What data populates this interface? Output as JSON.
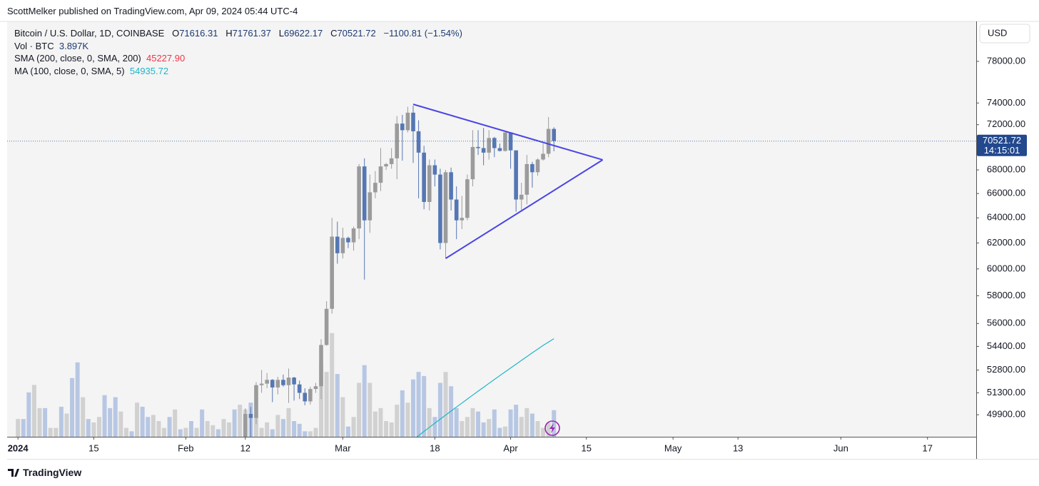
{
  "publisher": "ScottMelker published on TradingView.com, Apr 09, 2024 05:44 UTC-4",
  "footer": "TradingView",
  "chart_data": {
    "type": "candlestick",
    "symbol": "Bitcoin / U.S. Dollar, 1D, COINBASE",
    "open_label": "O",
    "high_label": "H",
    "low_label": "L",
    "close_label": "C",
    "change": {
      "value": -1100.81,
      "label": "−1100.81"
    },
    "change_percent": {
      "value": -1.54,
      "label": "(−1.54%)"
    },
    "currency": "USD",
    "countdown": "14:15:01",
    "log_scale": true,
    "up_color": "#9b9b9b",
    "down_color": "#5577b3",
    "x": [
      "2024-02-12",
      "2024-02-13",
      "2024-02-14",
      "2024-02-15",
      "2024-02-16",
      "2024-02-17",
      "2024-02-18",
      "2024-02-19",
      "2024-02-20",
      "2024-02-21",
      "2024-02-22",
      "2024-02-23",
      "2024-02-24",
      "2024-02-25",
      "2024-02-26",
      "2024-02-27",
      "2024-02-28",
      "2024-02-29",
      "2024-03-01",
      "2024-03-02",
      "2024-03-03",
      "2024-03-04",
      "2024-03-05",
      "2024-03-06",
      "2024-03-07",
      "2024-03-08",
      "2024-03-09",
      "2024-03-10",
      "2024-03-11",
      "2024-03-12",
      "2024-03-13",
      "2024-03-14",
      "2024-03-15",
      "2024-03-16",
      "2024-03-17",
      "2024-03-18",
      "2024-03-19",
      "2024-03-20",
      "2024-03-21",
      "2024-03-22",
      "2024-03-23",
      "2024-03-24",
      "2024-03-25",
      "2024-03-26",
      "2024-03-27",
      "2024-03-28",
      "2024-03-29",
      "2024-03-30",
      "2024-03-31",
      "2024-04-01",
      "2024-04-02",
      "2024-04-03",
      "2024-04-04",
      "2024-04-05",
      "2024-04-06",
      "2024-04-07",
      "2024-04-08",
      "2024-04-09"
    ],
    "open": [
      48300,
      49950,
      49700,
      51800,
      51900,
      52150,
      51650,
      52150,
      51800,
      52300,
      51850,
      51300,
      50750,
      51550,
      51730,
      54500,
      57050,
      62500,
      61200,
      62400,
      62050,
      63150,
      68300,
      63800,
      66100,
      66900,
      68300,
      68500,
      69000,
      72100,
      71500,
      73100,
      71400,
      69500,
      65300,
      68400,
      67600,
      62000,
      67800,
      65500,
      63800,
      64000,
      67200,
      70000,
      69900,
      69500,
      70800,
      69900,
      69650,
      71300,
      69700,
      65500,
      65900,
      68500,
      67800,
      68900,
      69400,
      71616.31
    ],
    "high": [
      50300,
      50400,
      52000,
      52800,
      52600,
      52200,
      52350,
      52500,
      52900,
      52350,
      52100,
      51600,
      51700,
      51950,
      54900,
      57600,
      64000,
      63700,
      63200,
      62500,
      63300,
      68500,
      69000,
      67600,
      67900,
      69900,
      68600,
      69900,
      72800,
      72900,
      73650,
      73750,
      72400,
      70100,
      68900,
      68900,
      68100,
      68000,
      68200,
      66600,
      65800,
      67600,
      71500,
      71500,
      71700,
      71500,
      70900,
      70300,
      71300,
      71300,
      69700,
      66900,
      69300,
      68700,
      69000,
      70300,
      72700,
      71761.37
    ],
    "low": [
      47700,
      48300,
      49300,
      51300,
      51600,
      50700,
      51200,
      51700,
      50650,
      50800,
      50900,
      50500,
      50550,
      51300,
      50900,
      54450,
      56700,
      60400,
      60800,
      61600,
      61400,
      62300,
      59200,
      62800,
      65600,
      66200,
      68000,
      68100,
      67200,
      68800,
      71300,
      68600,
      65600,
      64700,
      64600,
      66600,
      61500,
      60800,
      64600,
      62300,
      63100,
      63800,
      66600,
      69300,
      68400,
      68900,
      69100,
      69600,
      69600,
      68100,
      64500,
      64500,
      65100,
      66500,
      67500,
      68800,
      69100,
      69622.17
    ],
    "close": [
      49950,
      49700,
      51800,
      51900,
      52150,
      51650,
      52150,
      51800,
      52300,
      51850,
      51300,
      50750,
      51550,
      51730,
      54500,
      57050,
      62500,
      61200,
      62400,
      62050,
      63150,
      68300,
      63800,
      66100,
      66900,
      68300,
      68500,
      69000,
      72100,
      71500,
      73100,
      71400,
      69500,
      65300,
      68400,
      67600,
      62000,
      67800,
      65500,
      63800,
      64000,
      67200,
      70000,
      69900,
      69500,
      70800,
      69900,
      69650,
      71300,
      69700,
      65500,
      65900,
      68500,
      67800,
      68900,
      69400,
      71616.31,
      70521.72
    ],
    "ylim": [
      48530,
      82040
    ],
    "yticks": [
      {
        "value": 49900,
        "label": "49900.00"
      },
      {
        "value": 51300,
        "label": "51300.00"
      },
      {
        "value": 52800,
        "label": "52800.00"
      },
      {
        "value": 54400,
        "label": "54400.00"
      },
      {
        "value": 56000,
        "label": "56000.00"
      },
      {
        "value": 58000,
        "label": "58000.00"
      },
      {
        "value": 60000,
        "label": "60000.00"
      },
      {
        "value": 62000,
        "label": "62000.00"
      },
      {
        "value": 64000,
        "label": "64000.00"
      },
      {
        "value": 66000,
        "label": "66000.00"
      },
      {
        "value": 68000,
        "label": "68000.00"
      },
      {
        "value": 72000,
        "label": "72000.00"
      },
      {
        "value": 74000,
        "label": "74000.00"
      },
      {
        "value": 78000,
        "label": "78000.00"
      }
    ],
    "xlim": [
      "2023-12-30",
      "2024-06-26"
    ],
    "xticks": [
      {
        "value": "2024-01-01",
        "label": "2024"
      },
      {
        "value": "2024-01-15",
        "label": "15"
      },
      {
        "value": "2024-02-01",
        "label": "Feb"
      },
      {
        "value": "2024-02-12",
        "label": "12"
      },
      {
        "value": "2024-03-01",
        "label": "Mar"
      },
      {
        "value": "2024-03-18",
        "label": "18"
      },
      {
        "value": "2024-04-01",
        "label": "Apr"
      },
      {
        "value": "2024-04-15",
        "label": "15"
      },
      {
        "value": "2024-05-01",
        "label": "May"
      },
      {
        "value": "2024-05-13",
        "label": "13"
      },
      {
        "value": "2024-06-01",
        "label": "Jun"
      },
      {
        "value": "2024-06-17",
        "label": "17"
      }
    ],
    "volume": {
      "name": "Vol · BTC",
      "last_label": "3.897K",
      "vlim": [
        0,
        16000
      ],
      "x": [
        "2024-01-01",
        "2024-01-02",
        "2024-01-03",
        "2024-01-04",
        "2024-01-05",
        "2024-01-06",
        "2024-01-07",
        "2024-01-08",
        "2024-01-09",
        "2024-01-10",
        "2024-01-11",
        "2024-01-12",
        "2024-01-13",
        "2024-01-14",
        "2024-01-15",
        "2024-01-16",
        "2024-01-17",
        "2024-01-18",
        "2024-01-19",
        "2024-01-20",
        "2024-01-21",
        "2024-01-22",
        "2024-01-23",
        "2024-01-24",
        "2024-01-25",
        "2024-01-26",
        "2024-01-27",
        "2024-01-28",
        "2024-01-29",
        "2024-01-30",
        "2024-01-31",
        "2024-02-01",
        "2024-02-02",
        "2024-02-03",
        "2024-02-04",
        "2024-02-05",
        "2024-02-06",
        "2024-02-07",
        "2024-02-08",
        "2024-02-09",
        "2024-02-10",
        "2024-02-11",
        "2024-02-12",
        "2024-02-13",
        "2024-02-14",
        "2024-02-15",
        "2024-02-16",
        "2024-02-17",
        "2024-02-18",
        "2024-02-19",
        "2024-02-20",
        "2024-02-21",
        "2024-02-22",
        "2024-02-23",
        "2024-02-24",
        "2024-02-25",
        "2024-02-26",
        "2024-02-27",
        "2024-02-28",
        "2024-02-29",
        "2024-03-01",
        "2024-03-02",
        "2024-03-03",
        "2024-03-04",
        "2024-03-05",
        "2024-03-06",
        "2024-03-07",
        "2024-03-08",
        "2024-03-09",
        "2024-03-10",
        "2024-03-11",
        "2024-03-12",
        "2024-03-13",
        "2024-03-14",
        "2024-03-15",
        "2024-03-16",
        "2024-03-17",
        "2024-03-18",
        "2024-03-19",
        "2024-03-20",
        "2024-03-21",
        "2024-03-22",
        "2024-03-23",
        "2024-03-24",
        "2024-03-25",
        "2024-03-26",
        "2024-03-27",
        "2024-03-28",
        "2024-03-29",
        "2024-03-30",
        "2024-03-31",
        "2024-04-01",
        "2024-04-02",
        "2024-04-03",
        "2024-04-04",
        "2024-04-05",
        "2024-04-06",
        "2024-04-07",
        "2024-04-08",
        "2024-04-09"
      ],
      "values": [
        2600,
        2600,
        6500,
        7600,
        4200,
        4200,
        1300,
        1300,
        4400,
        3400,
        8600,
        10900,
        5800,
        2600,
        2100,
        2900,
        6100,
        4200,
        5800,
        3700,
        1300,
        800,
        5000,
        4400,
        2900,
        3200,
        2300,
        1300,
        2900,
        4000,
        1100,
        1300,
        2300,
        1300,
        4000,
        2300,
        1700,
        1100,
        2600,
        2100,
        4000,
        4700,
        4000,
        5000,
        3200,
        1300,
        2100,
        1100,
        3200,
        2600,
        4200,
        2300,
        1900,
        800,
        800,
        1300,
        11000,
        9500,
        15200,
        9200,
        5800,
        1500,
        2900,
        7900,
        10500,
        7900,
        3700,
        4200,
        2300,
        2100,
        4700,
        6800,
        5000,
        8400,
        9500,
        8900,
        4200,
        2900,
        7900,
        9500,
        7400,
        4200,
        2300,
        2900,
        4200,
        3700,
        2100,
        2600,
        4000,
        1300,
        1500,
        4000,
        4700,
        2900,
        4200,
        3400,
        2300,
        1300,
        2100,
        3897
      ],
      "colors": [
        "#d1d1d1",
        "#b7c7e3",
        "#b7c7e3",
        "#d1d1d1",
        "#d1d1d1",
        "#b7c7e3",
        "#d1d1d1",
        "#d1d1d1",
        "#b7c7e3",
        "#d1d1d1",
        "#b7c7e3",
        "#b7c7e3",
        "#d1d1d1",
        "#b7c7e3",
        "#d1d1d1",
        "#d1d1d1",
        "#b7c7e3",
        "#b7c7e3",
        "#b7c7e3",
        "#d1d1d1",
        "#d1d1d1",
        "#b7c7e3",
        "#d1d1d1",
        "#b7c7e3",
        "#b7c7e3",
        "#d1d1d1",
        "#d1d1d1",
        "#d1d1d1",
        "#b7c7e3",
        "#d1d1d1",
        "#b7c7e3",
        "#d1d1d1",
        "#b7c7e3",
        "#d1d1d1",
        "#b7c7e3",
        "#d1d1d1",
        "#d1d1d1",
        "#b7c7e3",
        "#d1d1d1",
        "#d1d1d1",
        "#b7c7e3",
        "#d1d1d1",
        "#d1d1d1",
        "#b7c7e3",
        "#d1d1d1",
        "#d1d1d1",
        "#d1d1d1",
        "#b7c7e3",
        "#d1d1d1",
        "#b7c7e3",
        "#d1d1d1",
        "#b7c7e3",
        "#b7c7e3",
        "#b7c7e3",
        "#d1d1d1",
        "#d1d1d1",
        "#d1d1d1",
        "#d1d1d1",
        "#d1d1d1",
        "#b7c7e3",
        "#d1d1d1",
        "#b7c7e3",
        "#d1d1d1",
        "#d1d1d1",
        "#b7c7e3",
        "#d1d1d1",
        "#d1d1d1",
        "#d1d1d1",
        "#d1d1d1",
        "#d1d1d1",
        "#d1d1d1",
        "#b7c7e3",
        "#d1d1d1",
        "#b7c7e3",
        "#b7c7e3",
        "#b7c7e3",
        "#d1d1d1",
        "#b7c7e3",
        "#b7c7e3",
        "#d1d1d1",
        "#b7c7e3",
        "#b7c7e3",
        "#d1d1d1",
        "#d1d1d1",
        "#d1d1d1",
        "#b7c7e3",
        "#b7c7e3",
        "#d1d1d1",
        "#b7c7e3",
        "#b7c7e3",
        "#d1d1d1",
        "#b7c7e3",
        "#b7c7e3",
        "#d1d1d1",
        "#d1d1d1",
        "#b7c7e3",
        "#d1d1d1",
        "#d1d1d1",
        "#d1d1d1",
        "#b7c7e3"
      ]
    },
    "sma": {
      "name": "SMA (200, close, 0, SMA, 200)",
      "last": {
        "value": 45227.9,
        "label": "45227.90"
      },
      "color": "#f23645"
    },
    "ma": {
      "name": "MA (100, close, 0, SMA, 5)",
      "color": "#1fb5c8",
      "x": [
        "2024-03-13",
        "2024-03-14",
        "2024-03-15",
        "2024-03-16",
        "2024-03-17",
        "2024-03-18",
        "2024-03-19",
        "2024-03-20",
        "2024-03-21",
        "2024-03-22",
        "2024-03-23",
        "2024-03-24",
        "2024-03-25",
        "2024-03-26",
        "2024-03-27",
        "2024-03-28",
        "2024-03-29",
        "2024-03-30",
        "2024-03-31",
        "2024-04-01",
        "2024-04-02",
        "2024-04-03",
        "2024-04-04",
        "2024-04-05",
        "2024-04-06",
        "2024-04-07",
        "2024-04-08",
        "2024-04-09"
      ],
      "values": [
        48100,
        48350,
        48600,
        48860,
        49110,
        49370,
        49620,
        49880,
        50130,
        50390,
        50640,
        50900,
        51150,
        51410,
        51660,
        51920,
        52170,
        52430,
        52680,
        52940,
        53190,
        53450,
        53700,
        53960,
        54210,
        54470,
        54700,
        54935.72
      ]
    },
    "drawings": {
      "color": "#4b45e6",
      "lines": [
        {
          "points": [
            [
              "2024-03-14",
              73880
            ],
            [
              "2024-04-18",
              68870
            ]
          ]
        },
        {
          "points": [
            [
              "2024-03-20",
              60800
            ],
            [
              "2024-04-18",
              68870
            ]
          ]
        }
      ]
    }
  }
}
